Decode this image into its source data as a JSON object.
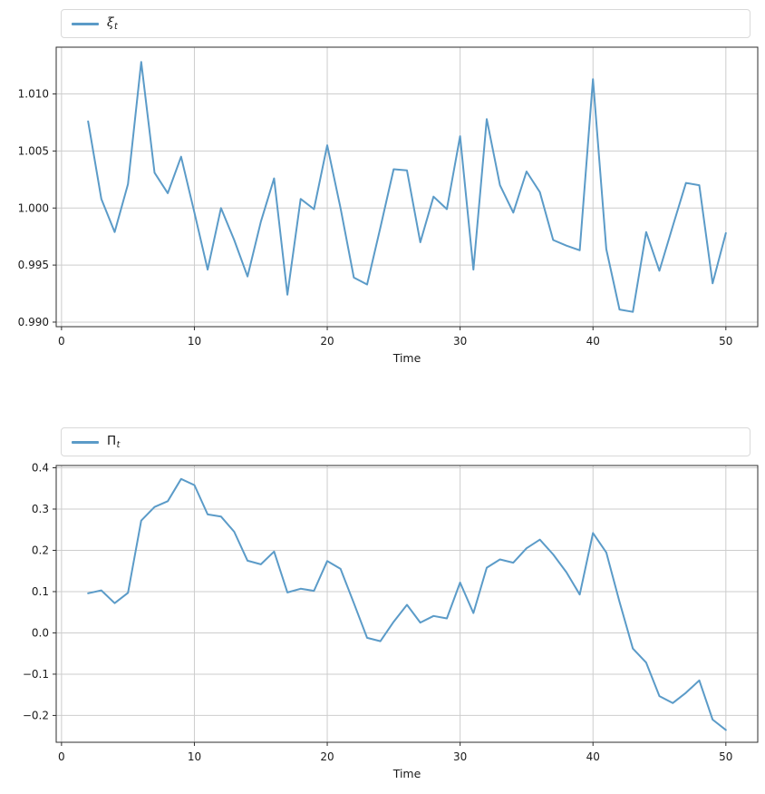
{
  "figure": {
    "background": "#ffffff",
    "line_color": "#5b9bc8",
    "grid_color": "#cdcdcd",
    "spine_color": "#2e2e2e",
    "tick_color": "#2e2e2e",
    "text_color": "#1a1a1a",
    "legend_border_color": "#d9d9d9"
  },
  "chart_data": [
    {
      "type": "line",
      "title": "",
      "legend": {
        "symbol": "ξ",
        "sub": "t",
        "display": "ξₜ"
      },
      "legend_position": "top-expanded",
      "xlabel": "Time",
      "ylabel": "",
      "grid": true,
      "line_width": 2,
      "xlim": [
        -0.4,
        52.4
      ],
      "ylim": [
        0.9896,
        1.0141
      ],
      "xticks": [
        0,
        10,
        20,
        30,
        40,
        50
      ],
      "xtick_labels": [
        "0",
        "10",
        "20",
        "30",
        "40",
        "50"
      ],
      "yticks": [
        0.99,
        0.995,
        1.0,
        1.005,
        1.01
      ],
      "ytick_labels": [
        "0.990",
        "0.995",
        "1.000",
        "1.005",
        "1.010"
      ],
      "x": [
        2,
        3,
        4,
        5,
        6,
        7,
        8,
        9,
        10,
        11,
        12,
        13,
        14,
        15,
        16,
        17,
        18,
        19,
        20,
        21,
        22,
        23,
        24,
        25,
        26,
        27,
        28,
        29,
        30,
        31,
        32,
        33,
        34,
        35,
        36,
        37,
        38,
        39,
        40,
        41,
        42,
        43,
        44,
        45,
        46,
        47,
        48,
        49,
        50
      ],
      "values": [
        1.0076,
        1.0008,
        0.9979,
        1.0021,
        1.0128,
        1.0031,
        1.0013,
        1.0045,
        0.9996,
        0.9946,
        1.0,
        0.9972,
        0.994,
        0.9988,
        1.0026,
        0.9924,
        1.0008,
        0.9999,
        1.0055,
        1.0,
        0.9939,
        0.9933,
        0.9983,
        1.0034,
        1.0033,
        0.997,
        1.001,
        0.9999,
        1.0063,
        0.9946,
        1.0078,
        1.002,
        0.9996,
        1.0032,
        1.0014,
        0.9972,
        0.9967,
        0.9963,
        1.0113,
        0.9964,
        0.9911,
        0.9909,
        0.9979,
        0.9945,
        0.9984,
        1.0022,
        1.002,
        0.9934,
        0.9978
      ]
    },
    {
      "type": "line",
      "title": "",
      "legend": {
        "symbol": "Π",
        "sub": "t",
        "display": "Πₜ"
      },
      "legend_position": "top-expanded",
      "xlabel": "Time",
      "ylabel": "",
      "grid": true,
      "line_width": 2,
      "xlim": [
        -0.4,
        52.4
      ],
      "ylim": [
        -0.265,
        0.4055
      ],
      "xticks": [
        0,
        10,
        20,
        30,
        40,
        50
      ],
      "xtick_labels": [
        "0",
        "10",
        "20",
        "30",
        "40",
        "50"
      ],
      "yticks": [
        -0.2,
        -0.1,
        0.0,
        0.1,
        0.2,
        0.3,
        0.4
      ],
      "ytick_labels": [
        "−0.2",
        "−0.1",
        "0.0",
        "0.1",
        "0.2",
        "0.3",
        "0.4"
      ],
      "x": [
        2,
        3,
        4,
        5,
        6,
        7,
        8,
        9,
        10,
        11,
        12,
        13,
        14,
        15,
        16,
        17,
        18,
        19,
        20,
        21,
        22,
        23,
        24,
        25,
        26,
        27,
        28,
        29,
        30,
        31,
        32,
        33,
        34,
        35,
        36,
        37,
        38,
        39,
        40,
        41,
        42,
        43,
        44,
        45,
        46,
        47,
        48,
        49,
        50
      ],
      "values": [
        0.096,
        0.103,
        0.072,
        0.097,
        0.272,
        0.305,
        0.319,
        0.373,
        0.358,
        0.287,
        0.282,
        0.245,
        0.175,
        0.166,
        0.197,
        0.098,
        0.107,
        0.102,
        0.174,
        0.155,
        0.072,
        -0.012,
        -0.02,
        0.027,
        0.068,
        0.025,
        0.041,
        0.035,
        0.122,
        0.048,
        0.158,
        0.178,
        0.17,
        0.205,
        0.226,
        0.19,
        0.147,
        0.093,
        0.242,
        0.195,
        0.075,
        -0.038,
        -0.072,
        -0.153,
        -0.17,
        -0.145,
        -0.115,
        -0.21,
        -0.235
      ]
    }
  ]
}
